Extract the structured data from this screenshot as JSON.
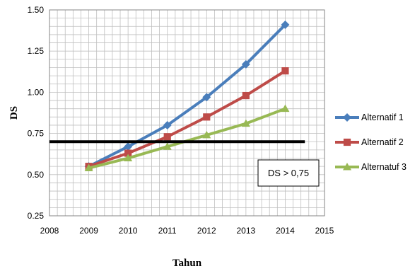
{
  "chart_data": {
    "type": "line",
    "xlabel": "Tahun",
    "ylabel": "DS",
    "xlim": [
      2008,
      2015
    ],
    "ylim": [
      0.25,
      1.5
    ],
    "x_ticks": [
      2008,
      2009,
      2010,
      2011,
      2012,
      2013,
      2014,
      2015
    ],
    "y_ticks": [
      0.25,
      0.5,
      0.75,
      1.0,
      1.25,
      1.5
    ],
    "y_tick_labels": [
      "0.25",
      "0.50",
      "0.75",
      "1.00",
      "1.25",
      "1.50"
    ],
    "grid": true,
    "legend_position": "right",
    "series": [
      {
        "name": "Alternatif 1",
        "color": "#4a7ebb",
        "marker": "diamond",
        "x": [
          2009,
          2010,
          2011,
          2012,
          2013,
          2014
        ],
        "y": [
          0.55,
          0.67,
          0.8,
          0.97,
          1.17,
          1.41
        ]
      },
      {
        "name": "Alternatif 2",
        "color": "#be4b48",
        "marker": "square",
        "x": [
          2009,
          2010,
          2011,
          2012,
          2013,
          2014
        ],
        "y": [
          0.55,
          0.63,
          0.73,
          0.85,
          0.98,
          1.13
        ]
      },
      {
        "name": "Alternatuf 3",
        "color": "#98b954",
        "marker": "triangle",
        "x": [
          2009,
          2010,
          2011,
          2012,
          2013,
          2014
        ],
        "y": [
          0.54,
          0.6,
          0.67,
          0.74,
          0.81,
          0.9
        ]
      }
    ],
    "threshold_line": {
      "y": 0.7,
      "x_from": 2008,
      "x_to": 2014.5,
      "color": "#000000"
    },
    "annotation": {
      "text": "DS > 0,75"
    }
  }
}
